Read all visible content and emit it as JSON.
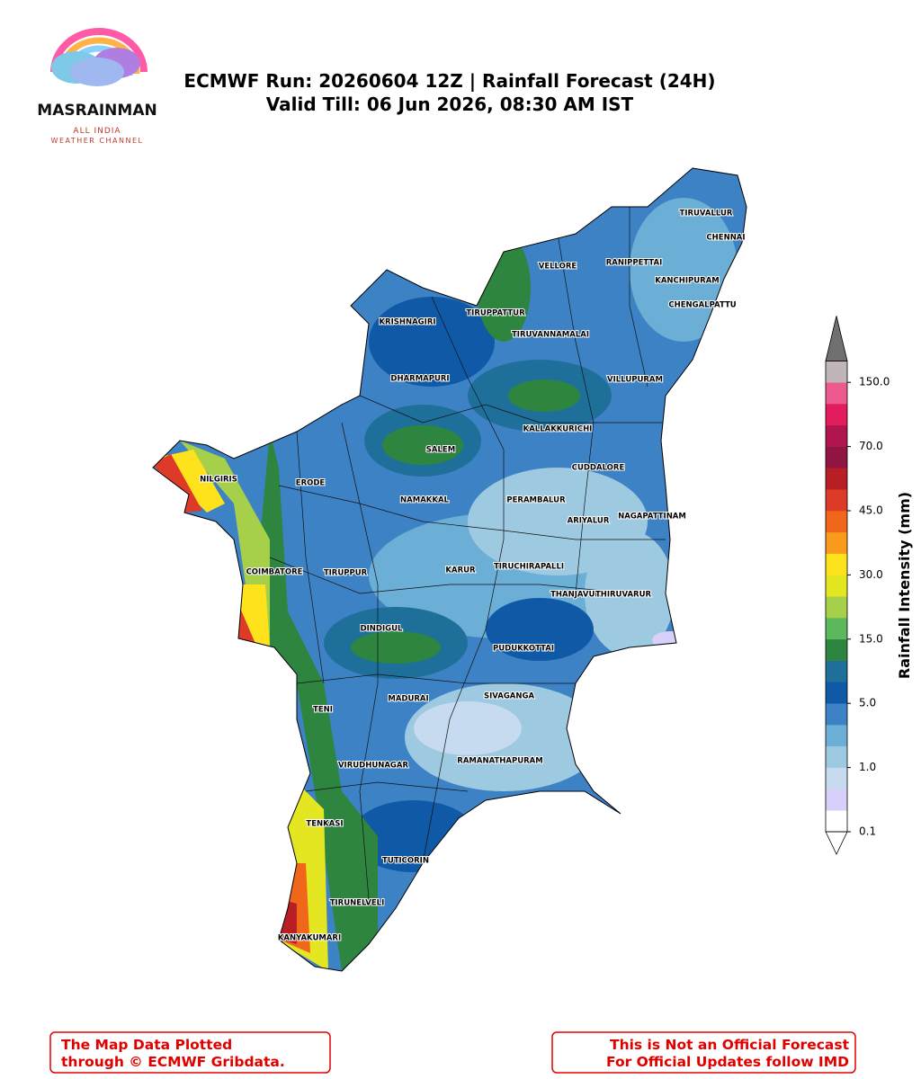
{
  "logo": {
    "name": "MASRAINMAN",
    "line1": "ALL INDIA",
    "line2": "WEATHER CHANNEL"
  },
  "header": {
    "title": "ECMWF Run: 20260604 12Z | Rainfall Forecast (24H)",
    "subtitle": "Valid Till: 06 Jun 2026, 08:30 AM IST"
  },
  "districts": [
    "TIRUVALLUR",
    "CHENNAI",
    "VELLORE",
    "RANIPPETTAI",
    "KANCHIPURAM",
    "CHENGALPATTU",
    "KRISHNAGIRI",
    "TIRUPPATTUR",
    "TIRUVANNAMALAI",
    "DHARMAPURI",
    "VILLUPURAM",
    "KALLAKKURICHI",
    "SALEM",
    "NILGIRIS",
    "ERODE",
    "CUDDALORE",
    "NAMAKKAL",
    "PERAMBALUR",
    "ARIYALUR",
    "NAGAPATTINAM",
    "COIMBATORE",
    "TIRUPPUR",
    "KARUR",
    "TIRUCHIRAPALLI",
    "THANJAVUR",
    "THIRUVARUR",
    "DINDIGUL",
    "PUDUKKOTTAI",
    "MADURAI",
    "SIVAGANGA",
    "TENI",
    "VIRUDHUNAGAR",
    "RAMANATHAPURAM",
    "TENKASI",
    "TUTICORIN",
    "TIRUNELVELI",
    "KANYAKUMARI"
  ],
  "colorbar": {
    "label": "Rainfall Intensity (mm)",
    "colors": [
      "#ffffff",
      "#d8d0fb",
      "#c6dbef",
      "#9ecae1",
      "#6baed6",
      "#3e82c6",
      "#0f59a6",
      "#1f6f9b",
      "#2e8540",
      "#5cb85c",
      "#a6cf4a",
      "#e5e622",
      "#fde21c",
      "#f99a1c",
      "#f0661a",
      "#dd3a28",
      "#b81f24",
      "#901542",
      "#b0154f",
      "#e31c5e",
      "#ed5a8f",
      "#c0b5b8"
    ],
    "over_color": "#707070",
    "ticks": [
      {
        "value": 0.1,
        "label": "0.1"
      },
      {
        "value": 1,
        "label": "1.0"
      },
      {
        "value": 5,
        "label": "5.0"
      },
      {
        "value": 15,
        "label": "15.0"
      },
      {
        "value": 30,
        "label": "30.0"
      },
      {
        "value": 45,
        "label": "45.0"
      },
      {
        "value": 70,
        "label": "70.0"
      },
      {
        "value": 150,
        "label": "150.0"
      }
    ]
  },
  "footer": {
    "left": [
      "The Map Data Plotted",
      "through © ECMWF Gribdata."
    ],
    "right": [
      "This is Not an Official Forecast",
      "For Official Updates follow IMD"
    ]
  }
}
